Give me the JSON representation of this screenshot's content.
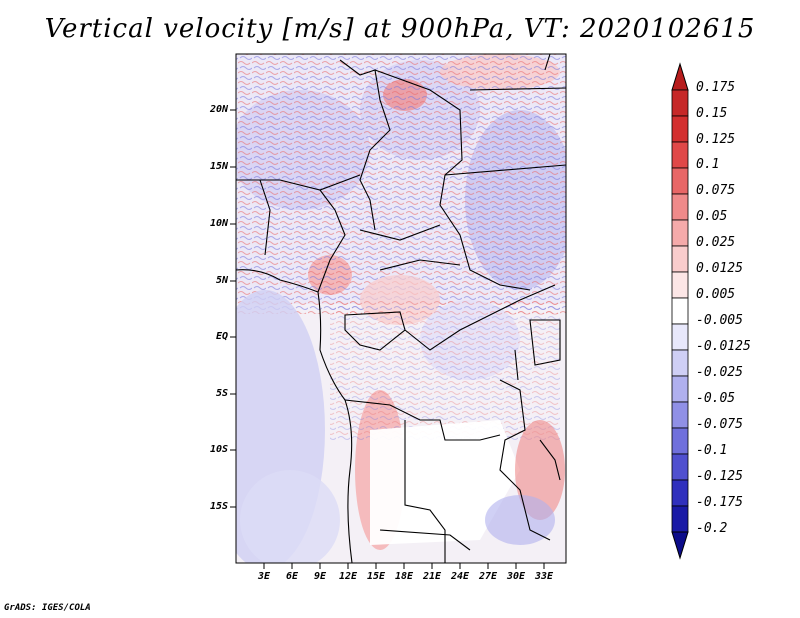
{
  "title": "Vertical velocity [m/s] at 900hPa, VT: 2020102615",
  "credit": "GrADS: IGES/COLA",
  "map": {
    "variable": "Vertical velocity",
    "units": "m/s",
    "level": "900hPa",
    "valid_time": "2020102615",
    "lat_ticks": [
      "20N",
      "15N",
      "10N",
      "5N",
      "EQ",
      "5S",
      "10S",
      "15S"
    ],
    "lon_ticks": [
      "3E",
      "6E",
      "9E",
      "12E",
      "15E",
      "18E",
      "21E",
      "24E",
      "27E",
      "30E",
      "33E"
    ]
  },
  "colorbar": {
    "labels": [
      "0.175",
      "0.15",
      "0.125",
      "0.1",
      "0.075",
      "0.05",
      "0.025",
      "0.0125",
      "0.005",
      "-0.005",
      "-0.0125",
      "-0.025",
      "-0.05",
      "-0.075",
      "-0.1",
      "-0.125",
      "-0.175",
      "-0.2"
    ],
    "colors": [
      "#b71c1c",
      "#c62828",
      "#d32f2f",
      "#e04848",
      "#e86666",
      "#ef8a8a",
      "#f5aaaa",
      "#f9cccc",
      "#fce6e6",
      "#ffffff",
      "#e8e8fb",
      "#cfcff5",
      "#b0b0ee",
      "#9090e6",
      "#7070dc",
      "#5050cf",
      "#3030bd",
      "#1a1aa6",
      "#0c0c8a"
    ]
  }
}
